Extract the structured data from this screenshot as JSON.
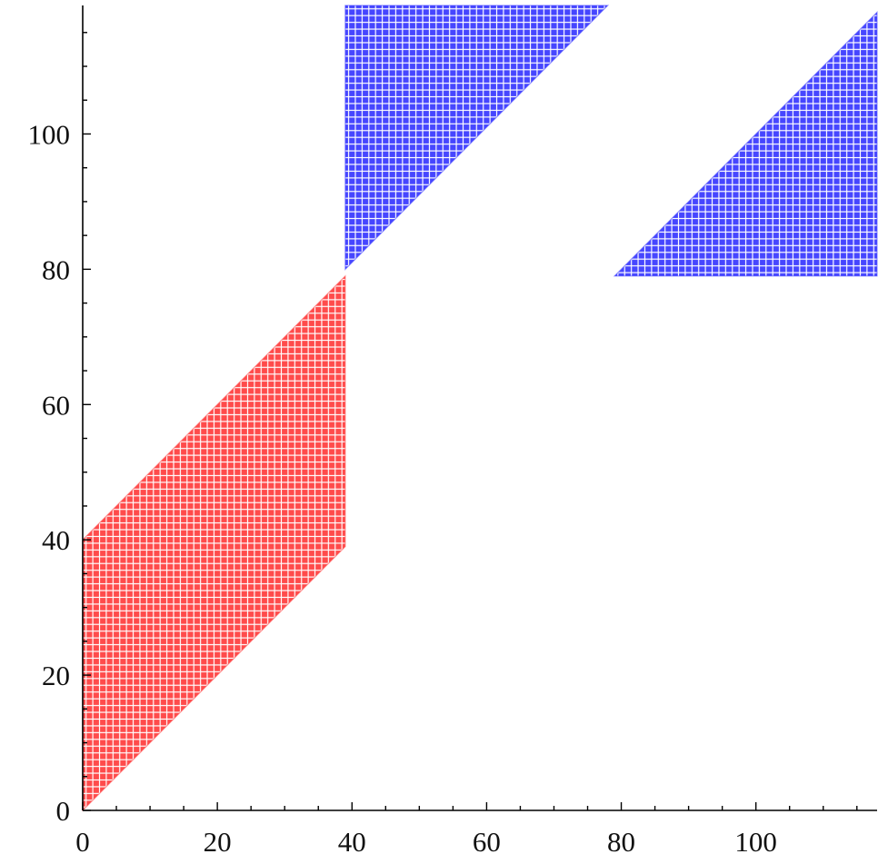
{
  "chart_data": {
    "type": "scatter",
    "title": "",
    "xlabel": "",
    "ylabel": "",
    "xlim": [
      0,
      118
    ],
    "ylim": [
      0,
      119
    ],
    "x_ticks": [
      0,
      20,
      40,
      60,
      80,
      100
    ],
    "y_ticks": [
      0,
      20,
      40,
      60,
      80,
      100
    ],
    "x_tick_labels": [
      "0",
      "20",
      "40",
      "60",
      "80",
      "100"
    ],
    "y_tick_labels": [
      "0",
      "20",
      "40",
      "60",
      "80",
      "100"
    ],
    "minor_tick_step": 5,
    "grid": false,
    "legend": "none",
    "point_spacing": 1,
    "regions": [
      {
        "color": "#ff4b4b",
        "shape": "parallelogram",
        "vertices": [
          [
            0,
            0
          ],
          [
            0,
            40
          ],
          [
            39,
            79
          ],
          [
            39,
            39
          ]
        ],
        "condition": "0 <= x <= 39 and x <= y <= x + 40"
      },
      {
        "color": "#4646ff",
        "shape": "triangle",
        "vertices": [
          [
            39,
            80
          ],
          [
            39,
            119
          ],
          [
            78,
            119
          ]
        ],
        "condition": "39 <= x <= 78 and x + 41 <= y <= 119"
      },
      {
        "color": "#4646ff",
        "shape": "triangle",
        "vertices": [
          [
            79,
            79
          ],
          [
            118,
            79
          ],
          [
            118,
            118
          ]
        ],
        "condition": "79 <= x <= 118 and 79 <= y <= x"
      }
    ]
  }
}
